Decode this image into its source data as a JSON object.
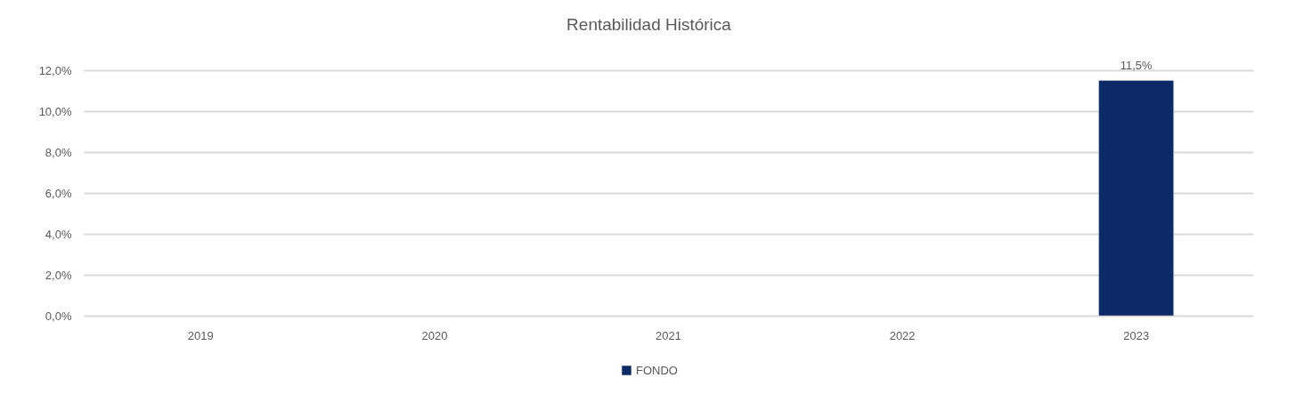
{
  "chart_data": {
    "type": "bar",
    "title": "Rentabilidad Histórica",
    "categories": [
      "2019",
      "2020",
      "2021",
      "2022",
      "2023"
    ],
    "series": [
      {
        "name": "FONDO",
        "color": "#0c2a66",
        "values": [
          null,
          null,
          null,
          null,
          11.5
        ],
        "value_labels": [
          null,
          null,
          null,
          null,
          "11,5%"
        ]
      }
    ],
    "ylim": [
      0,
      12
    ],
    "yticks": [
      {
        "value": 0,
        "label": "0,0%"
      },
      {
        "value": 2,
        "label": "2,0%"
      },
      {
        "value": 4,
        "label": "4,0%"
      },
      {
        "value": 6,
        "label": "6,0%"
      },
      {
        "value": 8,
        "label": "8,0%"
      },
      {
        "value": 10,
        "label": "10,0%"
      },
      {
        "value": 12,
        "label": "12,0%"
      }
    ],
    "grid": "y",
    "legend": "bottom"
  }
}
